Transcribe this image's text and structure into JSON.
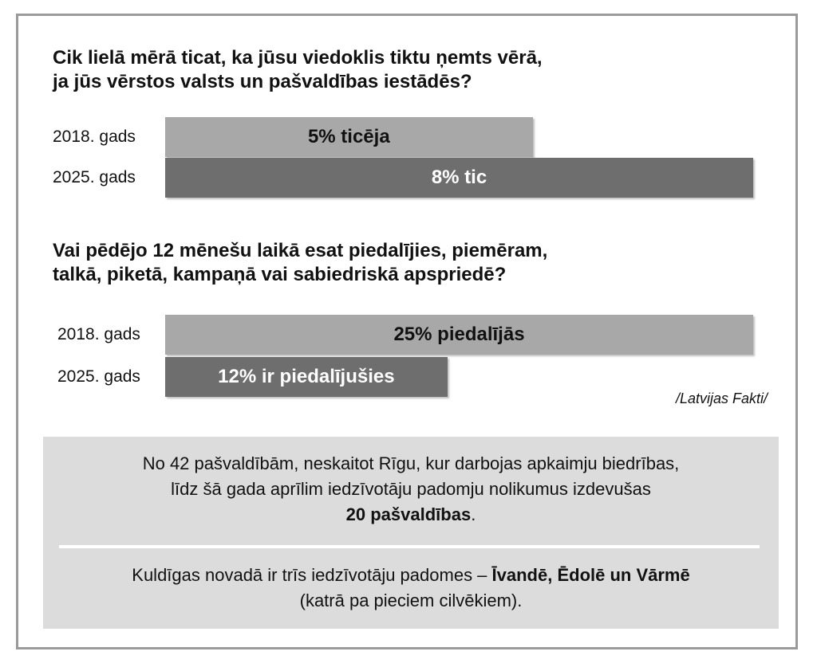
{
  "chart_data": [
    {
      "type": "bar",
      "orientation": "horizontal",
      "title": "Cik lielā mērā ticat, ka jūsu viedoklis tiktu ņemts vērā,",
      "title_line2": "ja jūs vērstos valsts un pašvaldības iestādēs?",
      "categories": [
        "2018. gads",
        "2025. gads"
      ],
      "values": [
        5,
        8
      ],
      "value_labels": [
        "5% ticēja",
        "8% tic"
      ],
      "unit": "%",
      "colors": [
        "#a8a8a8",
        "#6e6e6e"
      ],
      "label_colors": [
        "#111111",
        "#ffffff"
      ],
      "xlim": [
        0,
        8
      ]
    },
    {
      "type": "bar",
      "orientation": "horizontal",
      "title": "Vai pēdējo 12 mēnešu laikā esat piedalījies, piemēram,",
      "title_line2": "talkā, piketā, kampaņā vai sabiedriskā apspriedē?",
      "categories": [
        "2018. gads",
        "2025. gads"
      ],
      "values": [
        25,
        12
      ],
      "value_labels": [
        "25% piedalījās",
        "12% ir piedalījušies"
      ],
      "unit": "%",
      "colors": [
        "#a8a8a8",
        "#6e6e6e"
      ],
      "label_colors": [
        "#111111",
        "#ffffff"
      ],
      "xlim": [
        0,
        25
      ]
    }
  ],
  "source": "/Latvijas Fakti/",
  "info": {
    "p1_line1": "No 42 pašvaldībām, neskaitot Rīgu, kur darbojas apkaimju biedrības,",
    "p1_line2": "līdz šā gada aprīlim iedzīvotāju padomju nolikumus izdevušas",
    "p1_bold": "20 pašvaldības",
    "p1_end": ".",
    "p2_start": "Kuldīgas novadā ir trīs iedzīvotāju padomes – ",
    "p2_bold": "Īvandē, Ēdolē un Vārmē",
    "p2_line2": "(katrā pa pieciem cilvēkiem)."
  }
}
